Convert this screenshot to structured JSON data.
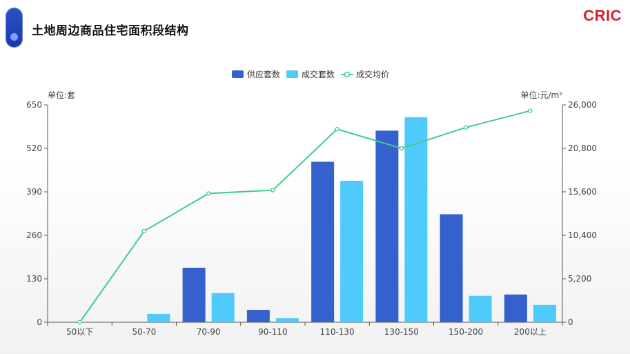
{
  "header": {
    "title": "土地周边商品住宅面积段结构",
    "logo": "CRIC"
  },
  "colors": {
    "supply": "#3461cd",
    "deal": "#4ecbfb",
    "price": "#3ecd8a",
    "accent": "#d4202f"
  },
  "chart_data": {
    "type": "bar",
    "categories": [
      "50以下",
      "50-70",
      "70-90",
      "90-110",
      "110-130",
      "130-150",
      "150-200",
      "200以上"
    ],
    "series": [
      {
        "name": "供应套数",
        "kind": "bar",
        "axis": "left",
        "values": [
          0,
          0,
          163,
          37,
          480,
          573,
          323,
          83
        ]
      },
      {
        "name": "成交套数",
        "kind": "bar",
        "axis": "left",
        "values": [
          0,
          25,
          87,
          12,
          423,
          613,
          79,
          52
        ]
      },
      {
        "name": "成交均价",
        "kind": "line",
        "axis": "right",
        "values": [
          0,
          10900,
          15400,
          15800,
          23100,
          20800,
          23300,
          25300
        ]
      }
    ],
    "yleft": {
      "label": "单位:套",
      "ylim": [
        0,
        650
      ],
      "ticks": [
        0,
        130,
        260,
        390,
        520,
        650
      ],
      "tick_labels": [
        "0",
        "130",
        "260",
        "390",
        "520",
        "650"
      ]
    },
    "yright": {
      "label": "单位:元/m²",
      "ylim": [
        0,
        26000
      ],
      "ticks": [
        0,
        5200,
        10400,
        15600,
        20800,
        26000
      ],
      "tick_labels": [
        "0",
        "5,200",
        "10,400",
        "15,600",
        "20,800",
        "26,000"
      ]
    },
    "legend_position": "top-center",
    "grid": false
  }
}
